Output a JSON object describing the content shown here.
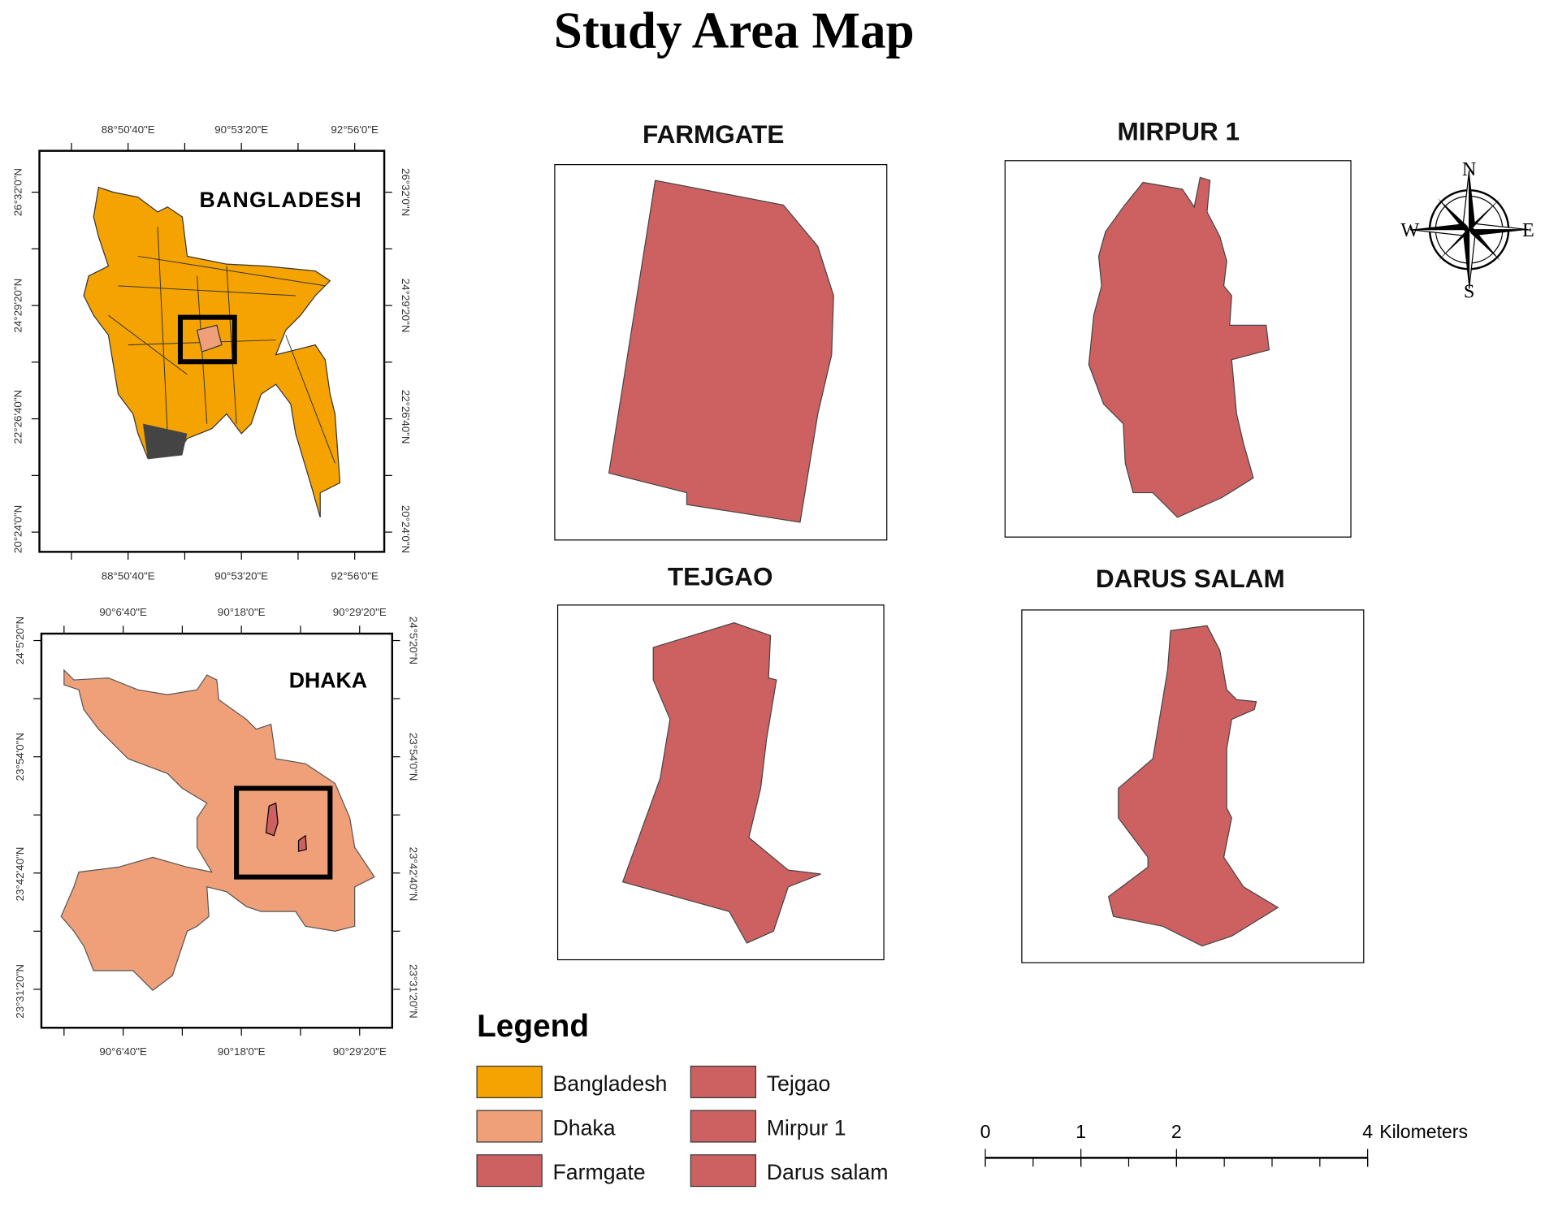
{
  "title": "Study Area Map",
  "insets": [
    {
      "label": "BANGLADESH",
      "lon_ticks": [
        "88°50'40\"E",
        "90°53'20\"E",
        "92°56'0\"E"
      ],
      "lat_ticks": [
        "26°32'0\"N",
        "24°29'20\"N",
        "22°26'40\"N",
        "20°24'0\"N"
      ]
    },
    {
      "label": "DHAKA",
      "lon_ticks": [
        "90°6'40\"E",
        "90°18'0\"E",
        "90°29'20\"E"
      ],
      "lat_ticks": [
        "24°5'20\"N",
        "23°54'0\"N",
        "23°42'40\"N",
        "23°31'20\"N"
      ]
    }
  ],
  "areas": [
    {
      "title": "FARMGATE"
    },
    {
      "title": "MIRPUR 1"
    },
    {
      "title": "TEJGAO"
    },
    {
      "title": "DARUS SALAM"
    }
  ],
  "compass": {
    "n": "N",
    "e": "E",
    "s": "S",
    "w": "W"
  },
  "legend": {
    "title": "Legend",
    "items": [
      {
        "label": "Bangladesh",
        "color": "#f5a300"
      },
      {
        "label": "Dhaka",
        "color": "#f0a078"
      },
      {
        "label": "Farmgate",
        "color": "#cd6162"
      },
      {
        "label": "Tejgao",
        "color": "#cd6162"
      },
      {
        "label": "Mirpur 1",
        "color": "#cd6162"
      },
      {
        "label": "Darus salam",
        "color": "#cd6162"
      }
    ]
  },
  "scale_bar": {
    "ticks": [
      0,
      1,
      2,
      4
    ],
    "unit": "Kilometers"
  }
}
